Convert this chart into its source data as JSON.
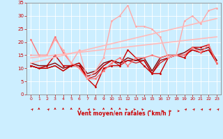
{
  "background_color": "#cceeff",
  "grid_color": "#ffffff",
  "xlabel": "Vent moyen/en rafales ( km/h )",
  "xlabel_color": "#cc0000",
  "tick_color": "#cc0000",
  "axis_color": "#888888",
  "xlim": [
    -0.5,
    23.5
  ],
  "ylim": [
    0,
    35
  ],
  "yticks": [
    0,
    5,
    10,
    15,
    20,
    25,
    30,
    35
  ],
  "xticks": [
    0,
    1,
    2,
    3,
    4,
    5,
    6,
    7,
    8,
    9,
    10,
    11,
    12,
    13,
    14,
    15,
    16,
    17,
    18,
    19,
    20,
    21,
    22,
    23
  ],
  "series": [
    {
      "x": [
        0,
        1,
        2,
        3,
        4,
        5,
        6,
        7,
        8,
        9,
        10,
        11,
        12,
        13,
        14,
        15,
        16,
        17,
        18,
        19,
        20,
        21,
        22,
        23
      ],
      "y": [
        11,
        10,
        11,
        15,
        11,
        11,
        11,
        6,
        3,
        10,
        11,
        11,
        17,
        14,
        11,
        8,
        8,
        14,
        15,
        14,
        18,
        18,
        19,
        12
      ],
      "color": "#cc0000",
      "lw": 1.0,
      "marker": "o",
      "ms": 2.0
    },
    {
      "x": [
        0,
        1,
        2,
        3,
        4,
        5,
        6,
        7,
        8,
        9,
        10,
        11,
        12,
        13,
        14,
        15,
        16,
        17,
        18,
        19,
        20,
        21,
        22,
        23
      ],
      "y": [
        11,
        10,
        10,
        11,
        9,
        11,
        11,
        7,
        8,
        11,
        13,
        12,
        13,
        13,
        13,
        8,
        13,
        14,
        15,
        15,
        17,
        16,
        17,
        13
      ],
      "color": "#aa0000",
      "lw": 1.0,
      "marker": null,
      "ms": 0
    },
    {
      "x": [
        0,
        1,
        2,
        3,
        4,
        5,
        6,
        7,
        8,
        9,
        10,
        11,
        12,
        13,
        14,
        15,
        16,
        17,
        18,
        19,
        20,
        21,
        22,
        23
      ],
      "y": [
        12,
        11,
        11,
        12,
        10,
        11,
        12,
        8,
        9,
        12,
        13,
        12,
        14,
        13,
        14,
        9,
        14,
        15,
        15,
        16,
        18,
        17,
        18,
        13
      ],
      "color": "#880000",
      "lw": 1.0,
      "marker": null,
      "ms": 0
    },
    {
      "x": [
        0,
        1,
        2,
        3,
        4,
        5,
        6,
        7,
        8,
        9,
        10,
        11,
        12,
        13,
        14,
        15,
        16,
        17,
        18,
        19,
        20,
        21,
        22,
        23
      ],
      "y": [
        11,
        10,
        10,
        11,
        9,
        11,
        12,
        6,
        7,
        11,
        13,
        11,
        13,
        12,
        13,
        8,
        12,
        14,
        15,
        15,
        17,
        16,
        17,
        12
      ],
      "color": "#cc0000",
      "lw": 0.8,
      "marker": null,
      "ms": 0
    },
    {
      "x": [
        0,
        1,
        2,
        3,
        4,
        5,
        6,
        7,
        8,
        9,
        10,
        11,
        12,
        13,
        14,
        15,
        16,
        17,
        18,
        19,
        20,
        21,
        22,
        23
      ],
      "y": [
        21,
        15,
        15,
        22,
        16,
        12,
        10,
        6,
        6,
        9,
        12,
        14,
        11,
        14,
        14,
        15,
        14,
        15,
        15,
        15,
        18,
        16,
        19,
        12
      ],
      "color": "#ff7777",
      "lw": 1.0,
      "marker": "o",
      "ms": 2.0
    },
    {
      "x": [
        0,
        1,
        2,
        3,
        4,
        5,
        6,
        7,
        8,
        9,
        10,
        11,
        12,
        13,
        14,
        15,
        16,
        17,
        18,
        19,
        20,
        21,
        22,
        23
      ],
      "y": [
        15,
        15,
        15,
        21,
        17,
        12,
        17,
        6,
        9,
        14,
        28,
        30,
        34,
        26,
        26,
        25,
        22,
        14,
        15,
        28,
        30,
        27,
        32,
        33
      ],
      "color": "#ffaaaa",
      "lw": 1.0,
      "marker": "o",
      "ms": 2.0
    },
    {
      "x": [
        0,
        23
      ],
      "y": [
        12,
        29
      ],
      "color": "#ffbbbb",
      "lw": 1.2,
      "marker": null,
      "ms": 0
    },
    {
      "x": [
        0,
        23
      ],
      "y": [
        14,
        22
      ],
      "color": "#ffbbbb",
      "lw": 1.2,
      "marker": null,
      "ms": 0
    }
  ],
  "arrow_angles": [
    45,
    0,
    45,
    0,
    0,
    0,
    0,
    45,
    315,
    0,
    0,
    0,
    315,
    315,
    315,
    270,
    90,
    90,
    90,
    45,
    45,
    45,
    45,
    45
  ]
}
